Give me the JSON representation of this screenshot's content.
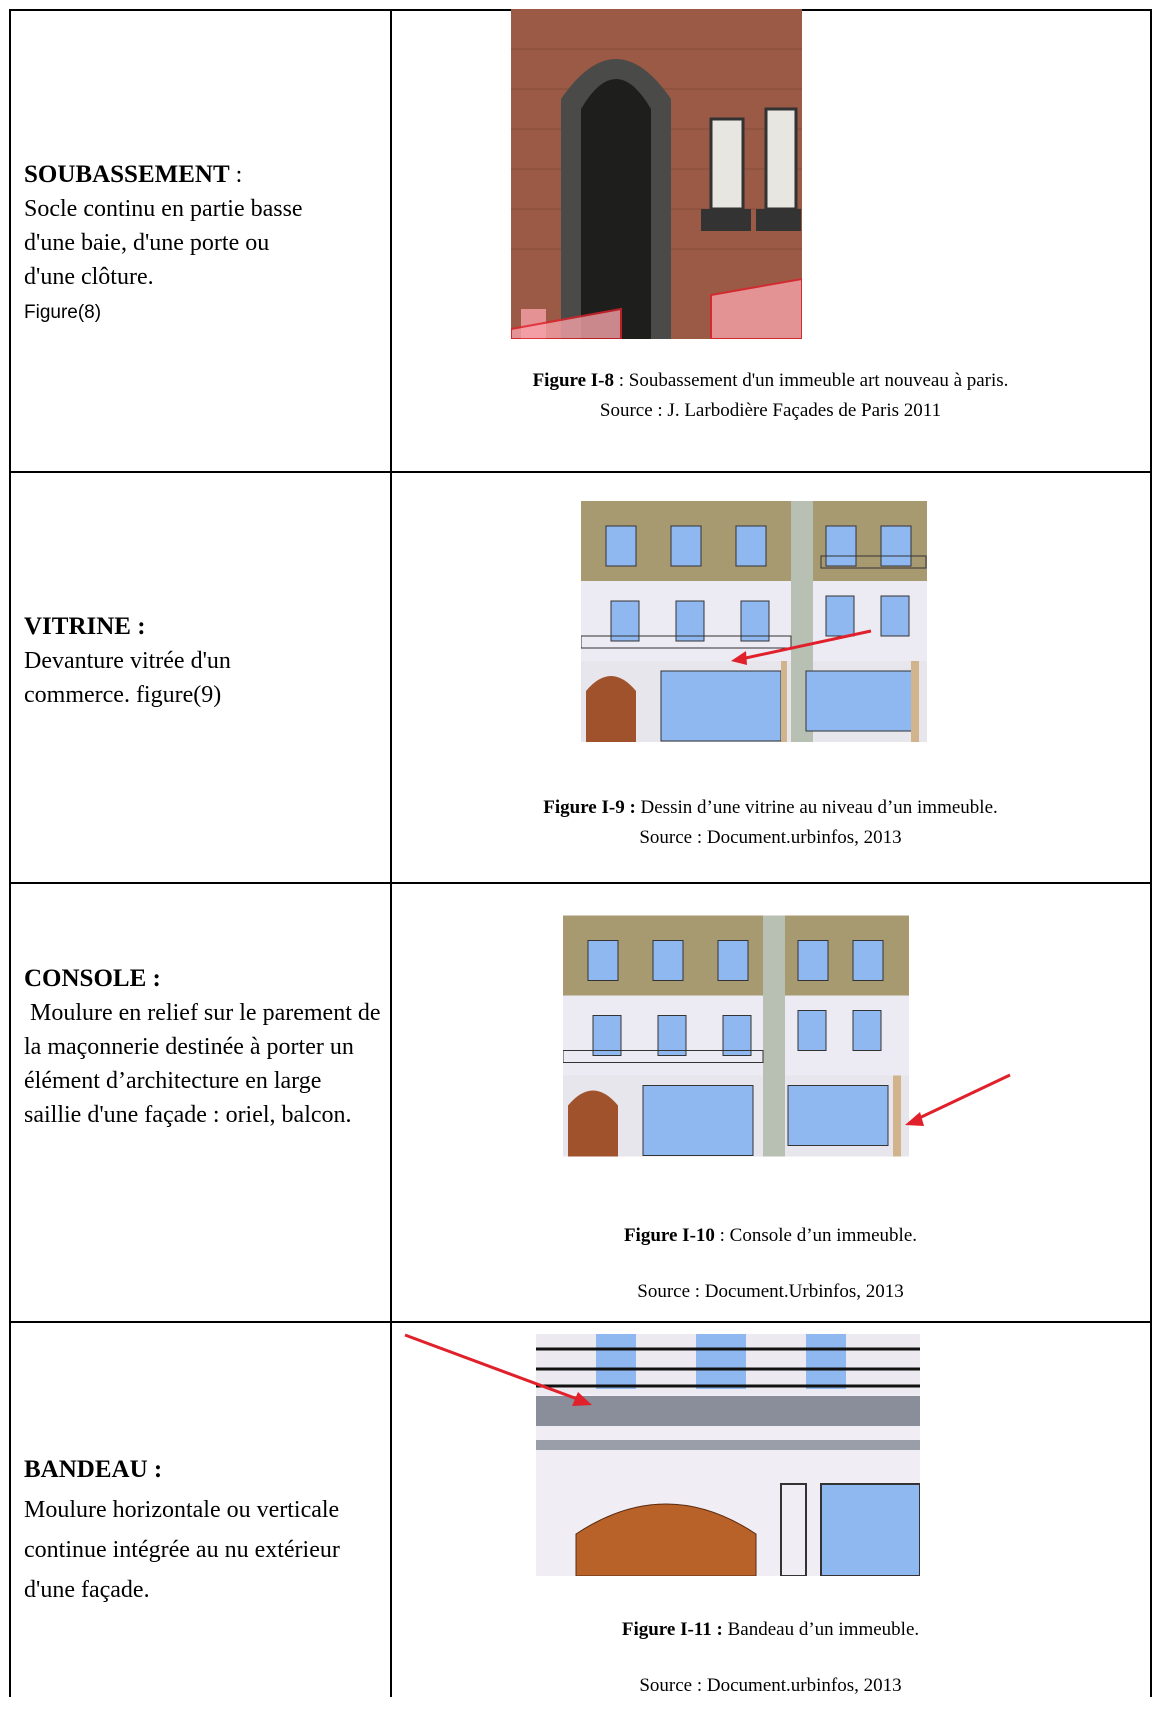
{
  "table": {
    "rows": [
      {
        "term": "SOUBASSEMENT",
        "term_suffix": ":",
        "definition": "Socle continu en partie basse d'une baie, d'une porte ou d'une clôture.",
        "ref": "Figure(8)",
        "fig_label": "Figure I-8",
        "fig_text": " : Soubassement d'un immeuble art nouveau à paris.",
        "source": "Source : J. Larbodière Façades de Paris 2011"
      },
      {
        "term": "VITRINE :",
        "definition": "Devanture vitrée d'un commerce. figure(9)",
        "fig_label": "Figure I-9 :",
        "fig_text": " Dessin d’une vitrine au niveau d’un immeuble.",
        "source": "Source : Document.urbinfos, 2013"
      },
      {
        "term": "CONSOLE :",
        "definition": " Moulure en relief sur le parement de la maçonnerie destinée à porter un élément d’architecture en large saillie d'une façade : oriel, balcon.",
        "fig_label": "Figure I-10",
        "fig_text": " : Console d’un immeuble.",
        "source": "Source : Document.Urbinfos, 2013"
      },
      {
        "term": "BANDEAU :",
        "definition": "Moulure horizontale ou verticale continue intégrée au nu extérieur d'une façade.",
        "fig_label": "Figure I-11 :",
        "fig_text": " Bandeau d’un immeuble.",
        "source": "Source : Document.urbinfos, 2013"
      }
    ]
  }
}
